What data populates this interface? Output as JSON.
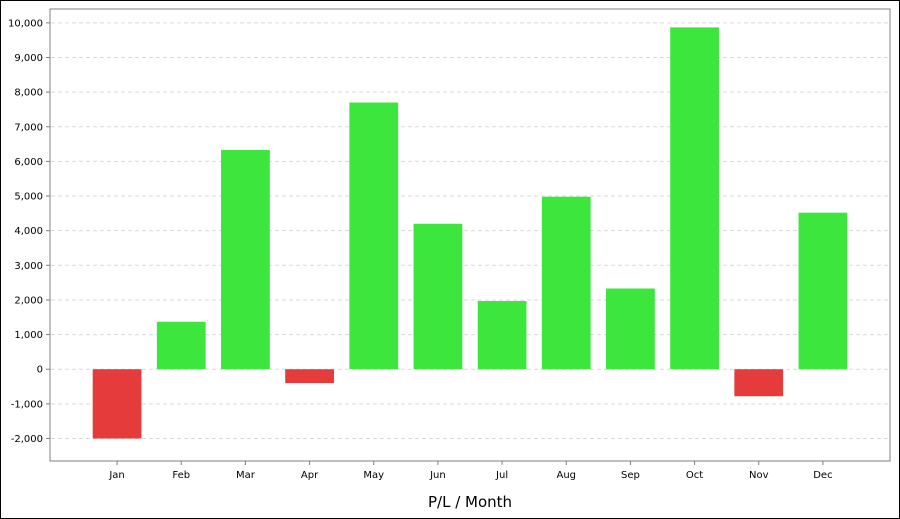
{
  "chart_data": {
    "type": "bar",
    "title": "",
    "xlabel": "P/L / Month",
    "ylabel": "",
    "categories": [
      "Jan",
      "Feb",
      "Mar",
      "Apr",
      "May",
      "Jun",
      "Jul",
      "Aug",
      "Sep",
      "Oct",
      "Nov",
      "Dec"
    ],
    "values": [
      -2000,
      1370,
      6330,
      -400,
      7700,
      4200,
      1970,
      4980,
      2330,
      9870,
      -780,
      4520
    ],
    "ylim": [
      -2650,
      10400
    ],
    "yticks": [
      -2000,
      -1000,
      0,
      1000,
      2000,
      3000,
      4000,
      5000,
      6000,
      7000,
      8000,
      9000,
      10000
    ],
    "ytick_labels": [
      "-2,000",
      "-1,000",
      "0",
      "1,000",
      "2,000",
      "3,000",
      "4,000",
      "5,000",
      "6,000",
      "7,000",
      "8,000",
      "9,000",
      "10,000"
    ],
    "grid": true,
    "legend": "none",
    "colors": {
      "positive": "#3ce63c",
      "negative": "#e63b3b",
      "grid": "#d9d9d9",
      "axis": "#808080"
    }
  }
}
